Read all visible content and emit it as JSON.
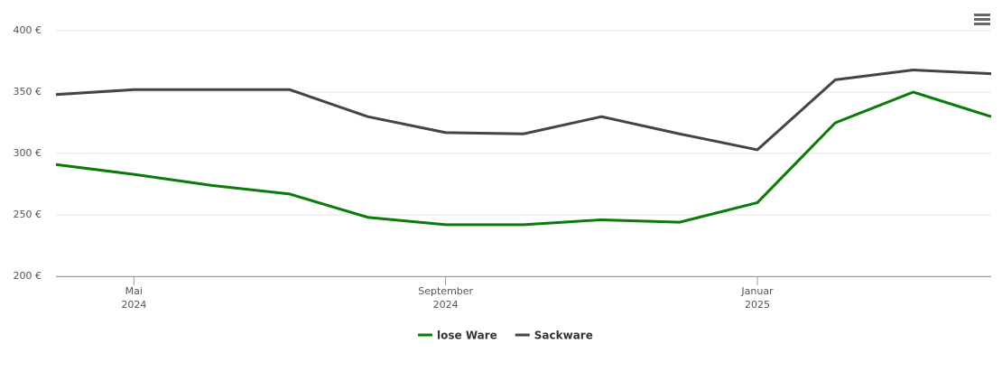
{
  "chart_data": {
    "type": "line",
    "x": [
      "2024-04",
      "2024-05",
      "2024-06",
      "2024-07",
      "2024-08",
      "2024-09",
      "2024-10",
      "2024-11",
      "2024-12",
      "2025-01",
      "2025-02",
      "2025-03",
      "2025-04"
    ],
    "series": [
      {
        "name": "lose Ware",
        "color": "#0a7a0a",
        "values": [
          291,
          283,
          274,
          267,
          248,
          242,
          242,
          246,
          244,
          260,
          325,
          350,
          330
        ]
      },
      {
        "name": "Sackware",
        "color": "#434348",
        "values": [
          348,
          352,
          352,
          352,
          330,
          317,
          316,
          330,
          316,
          303,
          360,
          368,
          365
        ]
      }
    ],
    "xlim": [
      "2024-04",
      "2025-04"
    ],
    "xticks": [
      {
        "value": "2024-05",
        "label": [
          "Mai",
          "2024"
        ]
      },
      {
        "value": "2024-09",
        "label": [
          "September",
          "2024"
        ]
      },
      {
        "value": "2025-01",
        "label": [
          "Januar",
          "2025"
        ]
      }
    ],
    "ylim": [
      200,
      400
    ],
    "yticks": [
      {
        "value": 200,
        "label": "200 €"
      },
      {
        "value": 250,
        "label": "250 €"
      },
      {
        "value": 300,
        "label": "300 €"
      },
      {
        "value": 350,
        "label": "350 €"
      },
      {
        "value": 400,
        "label": "400 €"
      }
    ],
    "grid": true
  }
}
